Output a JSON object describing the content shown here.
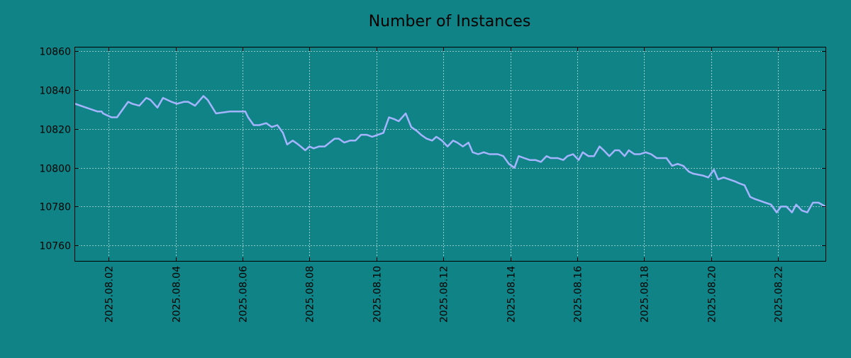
{
  "colors": {
    "background": "#108386",
    "line": "#a4b4ff",
    "grid": "#b8dcdc",
    "axis": "#000000"
  },
  "chart_data": {
    "type": "line",
    "title": "Number of Instances",
    "xlabel": "",
    "ylabel": "",
    "x_axis_type": "date",
    "xlim": [
      "2025-08-01 00:00",
      "2025-08-23 10:00"
    ],
    "ylim": [
      10752,
      10862
    ],
    "x_ticks": [
      "2025.08.02",
      "2025.08.04",
      "2025.08.06",
      "2025.08.08",
      "2025.08.10",
      "2025.08.12",
      "2025.08.14",
      "2025.08.16",
      "2025.08.18",
      "2025.08.20",
      "2025.08.22"
    ],
    "y_ticks": [
      10760,
      10780,
      10800,
      10820,
      10840,
      10860
    ],
    "grid": true,
    "legend": "none",
    "series": [
      {
        "x": [
          "2025-08-01 00:00",
          "2025-08-01 16:00",
          "2025-08-01 19:00",
          "2025-08-01 20:00",
          "2025-08-02 02:00",
          "2025-08-02 06:00",
          "2025-08-02 14:00",
          "2025-08-02 17:00",
          "2025-08-02 22:00",
          "2025-08-03 03:00",
          "2025-08-03 06:00",
          "2025-08-03 11:00",
          "2025-08-03 15:00",
          "2025-08-03 21:00",
          "2025-08-04 01:00",
          "2025-08-04 06:00",
          "2025-08-04 09:00",
          "2025-08-04 14:00",
          "2025-08-04 20:00",
          "2025-08-04 23:00",
          "2025-08-05 05:00",
          "2025-08-05 15:00",
          "2025-08-05 18:00",
          "2025-08-05 22:00",
          "2025-08-06 02:00",
          "2025-08-06 04:00",
          "2025-08-06 08:00",
          "2025-08-06 12:00",
          "2025-08-06 17:00",
          "2025-08-06 21:00",
          "2025-08-07 01:00",
          "2025-08-07 05:00",
          "2025-08-07 08:00",
          "2025-08-07 12:00",
          "2025-08-07 16:00",
          "2025-08-07 21:00",
          "2025-08-08 00:00",
          "2025-08-08 03:00",
          "2025-08-08 07:00",
          "2025-08-08 11:00",
          "2025-08-08 18:00",
          "2025-08-08 21:00",
          "2025-08-09 01:00",
          "2025-08-09 05:00",
          "2025-08-09 09:00",
          "2025-08-09 13:00",
          "2025-08-09 17:00",
          "2025-08-09 21:00",
          "2025-08-10 05:00",
          "2025-08-10 09:00",
          "2025-08-10 13:00",
          "2025-08-10 16:00",
          "2025-08-10 21:00",
          "2025-08-11 01:00",
          "2025-08-11 05:00",
          "2025-08-11 08:00",
          "2025-08-11 12:00",
          "2025-08-11 16:00",
          "2025-08-11 19:00",
          "2025-08-11 23:00",
          "2025-08-12 03:00",
          "2025-08-12 07:00",
          "2025-08-12 10:00",
          "2025-08-12 14:00",
          "2025-08-12 18:00",
          "2025-08-12 21:00",
          "2025-08-13 01:00",
          "2025-08-13 05:00",
          "2025-08-13 09:00",
          "2025-08-13 15:00",
          "2025-08-13 19:00",
          "2025-08-13 23:00",
          "2025-08-14 03:00",
          "2025-08-14 06:00",
          "2025-08-14 10:00",
          "2025-08-14 14:00",
          "2025-08-14 18:00",
          "2025-08-14 22:00",
          "2025-08-15 02:00",
          "2025-08-15 05:00",
          "2025-08-15 10:00",
          "2025-08-15 14:00",
          "2025-08-15 17:00",
          "2025-08-15 21:00",
          "2025-08-16 01:00",
          "2025-08-16 04:00",
          "2025-08-16 08:00",
          "2025-08-16 12:00",
          "2025-08-16 16:00",
          "2025-08-16 19:00",
          "2025-08-16 23:00",
          "2025-08-17 03:00",
          "2025-08-17 06:00",
          "2025-08-17 10:00",
          "2025-08-17 13:00",
          "2025-08-17 17:00",
          "2025-08-17 21:00",
          "2025-08-18 01:00",
          "2025-08-18 05:00",
          "2025-08-18 09:00",
          "2025-08-18 13:00",
          "2025-08-18 16:00",
          "2025-08-18 20:00",
          "2025-08-19 00:00",
          "2025-08-19 04:00",
          "2025-08-19 08:00",
          "2025-08-19 11:00",
          "2025-08-19 18:00",
          "2025-08-19 22:00",
          "2025-08-20 02:00",
          "2025-08-20 05:00",
          "2025-08-20 09:00",
          "2025-08-20 13:00",
          "2025-08-20 17:00",
          "2025-08-20 20:00",
          "2025-08-21 00:00",
          "2025-08-21 04:00",
          "2025-08-21 07:00",
          "2025-08-21 11:00",
          "2025-08-21 15:00",
          "2025-08-21 19:00",
          "2025-08-21 23:00",
          "2025-08-22 02:00",
          "2025-08-22 06:00",
          "2025-08-22 10:00",
          "2025-08-22 13:00",
          "2025-08-22 17:00",
          "2025-08-22 21:00",
          "2025-08-23 01:00",
          "2025-08-23 05:00",
          "2025-08-23 10:00"
        ],
        "values": [
          10833,
          10829,
          10829,
          10828,
          10826,
          10826,
          10834,
          10833,
          10832,
          10836,
          10835,
          10831,
          10836,
          10834,
          10833,
          10834,
          10834,
          10832,
          10837,
          10835,
          10828,
          10829,
          10829,
          10829,
          10829,
          10826,
          10822,
          10822,
          10823,
          10821,
          10822,
          10818,
          10812,
          10814,
          10812,
          10809,
          10811,
          10810,
          10811,
          10811,
          10815,
          10815,
          10813,
          10814,
          10814,
          10817,
          10817,
          10816,
          10818,
          10826,
          10825,
          10824,
          10828,
          10821,
          10819,
          10817,
          10815,
          10814,
          10816,
          10814,
          10811,
          10814,
          10813,
          10811,
          10813,
          10808,
          10807,
          10808,
          10807,
          10807,
          10806,
          10802,
          10800,
          10806,
          10805,
          10804,
          10804,
          10803,
          10806,
          10805,
          10805,
          10804,
          10806,
          10807,
          10804,
          10808,
          10806,
          10806,
          10811,
          10809,
          10806,
          10809,
          10809,
          10806,
          10809,
          10807,
          10807,
          10808,
          10807,
          10805,
          10805,
          10805,
          10801,
          10802,
          10801,
          10798,
          10797,
          10796,
          10795,
          10799,
          10794,
          10795,
          10794,
          10793,
          10792,
          10791,
          10785,
          10784,
          10783,
          10782,
          10781,
          10777,
          10780,
          10780,
          10777,
          10781,
          10778,
          10777,
          10782,
          10782,
          10780
        ]
      }
    ]
  }
}
